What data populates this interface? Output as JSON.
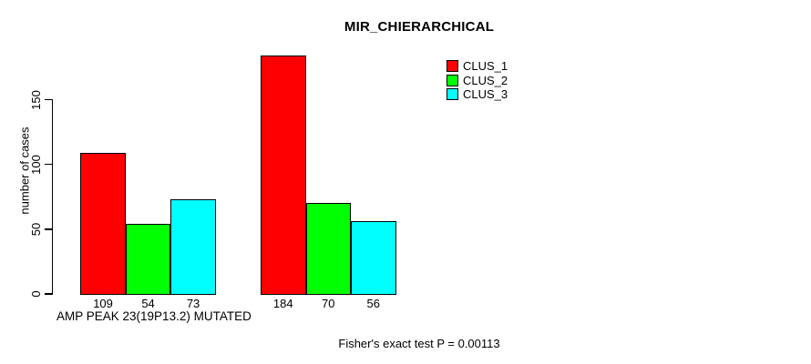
{
  "chart_data": {
    "type": "bar",
    "title": "MIR_CHIERARCHICAL",
    "ylabel": "number of cases",
    "xlabel": "AMP PEAK 23(19P13.2) MUTATED",
    "annotation": "Fisher's exact test P = 0.00113",
    "yticks": [
      0,
      50,
      100,
      150
    ],
    "grid": false,
    "legend_position": "top-right",
    "group_count": 2,
    "bar_labels_shown": true,
    "series": [
      {
        "name": "CLUS_1",
        "color": "#FF0000",
        "values": [
          109,
          184
        ]
      },
      {
        "name": "CLUS_2",
        "color": "#00FF00",
        "values": [
          54,
          70
        ]
      },
      {
        "name": "CLUS_3",
        "color": "#00FFFF",
        "values": [
          73,
          56
        ]
      }
    ],
    "bar_value_labels": [
      [
        109,
        54,
        73
      ],
      [
        184,
        70,
        56
      ]
    ],
    "axis_color": "#000000",
    "background_color": "#FFFFFF"
  }
}
